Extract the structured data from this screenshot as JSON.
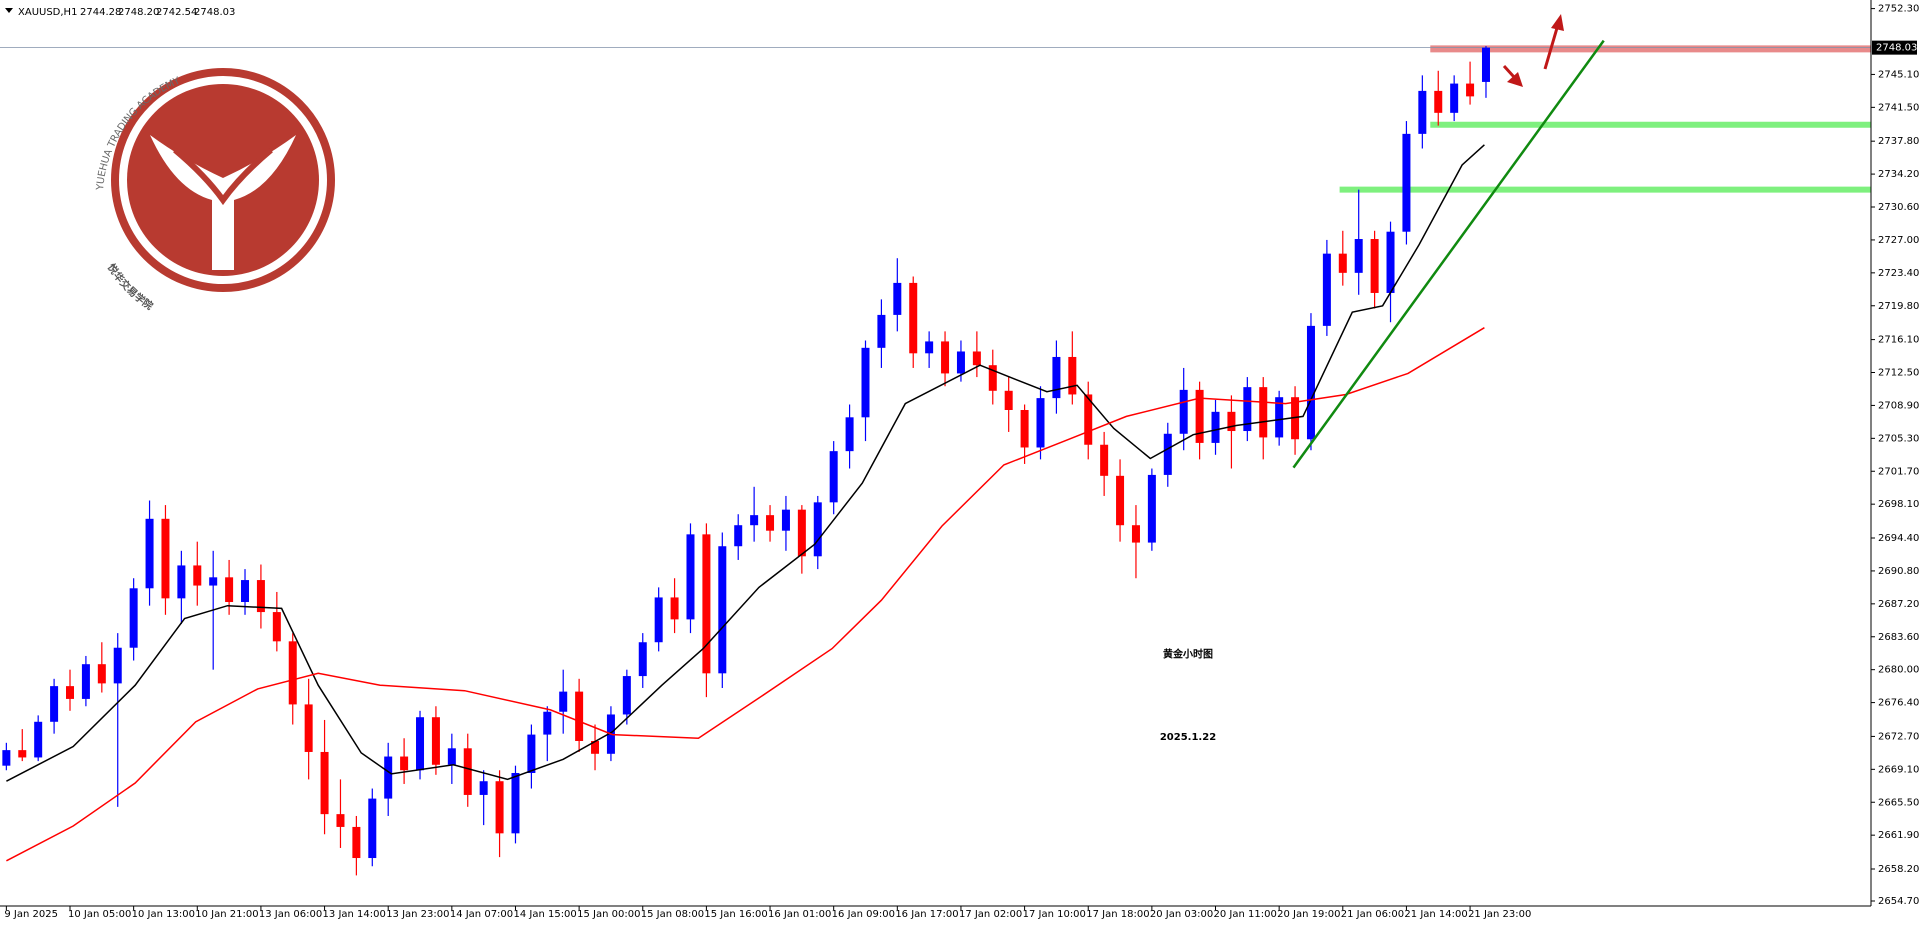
{
  "chart_data": {
    "type": "candlestick",
    "symbol": "XAUUSD,H1",
    "ohlc_labels": [
      "2744.28",
      "2748.20",
      "2742.54",
      "2748.03"
    ],
    "watermark": {
      "arc_text": "YUEHUA TRADING ACADEMY",
      "name_cn": "悦华交易学院"
    },
    "annotation": {
      "title": "黄金小时图",
      "date": "2025.1.22",
      "color": "#a020f0"
    },
    "up_color": "#0000ff",
    "down_color": "#ff0000",
    "xlim": [
      -0.4,
      117.2
    ],
    "ylim": [
      2654.7,
      2752.3
    ],
    "yticks": [
      {
        "value": 2654.7,
        "label": "2654.70"
      },
      {
        "value": 2658.2,
        "label": "2658.20"
      },
      {
        "value": 2661.9,
        "label": "2661.90"
      },
      {
        "value": 2665.5,
        "label": "2665.50"
      },
      {
        "value": 2669.1,
        "label": "2669.10"
      },
      {
        "value": 2672.7,
        "label": "2672.70"
      },
      {
        "value": 2676.4,
        "label": "2676.40"
      },
      {
        "value": 2680.0,
        "label": "2680.00"
      },
      {
        "value": 2683.6,
        "label": "2683.60"
      },
      {
        "value": 2687.2,
        "label": "2687.20"
      },
      {
        "value": 2690.8,
        "label": "2690.80"
      },
      {
        "value": 2694.4,
        "label": "2694.40"
      },
      {
        "value": 2698.1,
        "label": "2698.10"
      },
      {
        "value": 2701.7,
        "label": "2701.70"
      },
      {
        "value": 2705.3,
        "label": "2705.30"
      },
      {
        "value": 2708.9,
        "label": "2708.90"
      },
      {
        "value": 2712.5,
        "label": "2712.50"
      },
      {
        "value": 2716.1,
        "label": "2716.10"
      },
      {
        "value": 2719.8,
        "label": "2719.80"
      },
      {
        "value": 2723.4,
        "label": "2723.40"
      },
      {
        "value": 2727.0,
        "label": "2727.00"
      },
      {
        "value": 2730.6,
        "label": "2730.60"
      },
      {
        "value": 2734.2,
        "label": "2734.20"
      },
      {
        "value": 2737.8,
        "label": "2737.80"
      },
      {
        "value": 2741.5,
        "label": "2741.50"
      },
      {
        "value": 2745.1,
        "label": "2745.10"
      },
      {
        "value": 2752.3,
        "label": "2752.30"
      }
    ],
    "categories": [
      "9 Jan 2025",
      null,
      null,
      null,
      "10 Jan 05:00",
      null,
      null,
      null,
      "10 Jan 13:00",
      null,
      null,
      null,
      "10 Jan 21:00",
      null,
      null,
      null,
      "13 Jan 06:00",
      null,
      null,
      null,
      "13 Jan 14:00",
      null,
      null,
      null,
      "13 Jan 23:00",
      null,
      null,
      null,
      "14 Jan 07:00",
      null,
      null,
      null,
      "14 Jan 15:00",
      null,
      null,
      null,
      "15 Jan 00:00",
      null,
      null,
      null,
      "15 Jan 08:00",
      null,
      null,
      null,
      "15 Jan 16:00",
      null,
      null,
      null,
      "16 Jan 01:00",
      null,
      null,
      null,
      "16 Jan 09:00",
      null,
      null,
      null,
      "16 Jan 17:00",
      null,
      null,
      null,
      "17 Jan 02:00",
      null,
      null,
      null,
      "17 Jan 10:00",
      null,
      null,
      null,
      "17 Jan 18:00",
      null,
      null,
      null,
      "20 Jan 03:00",
      null,
      null,
      null,
      "20 Jan 11:00",
      null,
      null,
      null,
      "20 Jan 19:00",
      null,
      null,
      null,
      "21 Jan 06:00",
      null,
      null,
      null,
      "21 Jan 14:00",
      null,
      null,
      null,
      "21 Jan 23:00",
      null
    ],
    "candles": [
      [
        2669.5,
        2672,
        2669,
        2671.2
      ],
      [
        2671.2,
        2673.5,
        2670,
        2670.4
      ],
      [
        2670.4,
        2675,
        2670,
        2674.3
      ],
      [
        2674.3,
        2679,
        2673,
        2678.2
      ],
      [
        2678.2,
        2680,
        2675.5,
        2676.8
      ],
      [
        2676.8,
        2681.5,
        2676,
        2680.6
      ],
      [
        2680.6,
        2683,
        2677.5,
        2678.5
      ],
      [
        2678.5,
        2684,
        2665,
        2682.4
      ],
      [
        2682.4,
        2690,
        2681,
        2688.9
      ],
      [
        2688.9,
        2698.5,
        2687,
        2696.5
      ],
      [
        2696.5,
        2698,
        2686,
        2687.8
      ],
      [
        2687.8,
        2693,
        2685,
        2691.4
      ],
      [
        2691.4,
        2694,
        2687,
        2689.2
      ],
      [
        2689.2,
        2693,
        2680,
        2690.1
      ],
      [
        2690.1,
        2692,
        2686,
        2687.4
      ],
      [
        2687.4,
        2691,
        2686,
        2689.8
      ],
      [
        2689.8,
        2691.5,
        2684.5,
        2686.3
      ],
      [
        2686.3,
        2688.5,
        2682,
        2683.1
      ],
      [
        2683.1,
        2684,
        2674,
        2676.2
      ],
      [
        2676.2,
        2679,
        2668,
        2671
      ],
      [
        2671,
        2674.5,
        2662,
        2664.2
      ],
      [
        2664.2,
        2668,
        2660.5,
        2662.8
      ],
      [
        2662.8,
        2664,
        2657.5,
        2659.4
      ],
      [
        2659.4,
        2667,
        2658.5,
        2665.9
      ],
      [
        2665.9,
        2672,
        2664,
        2670.5
      ],
      [
        2670.5,
        2672.5,
        2667.5,
        2669
      ],
      [
        2669,
        2675.5,
        2668,
        2674.8
      ],
      [
        2674.8,
        2676,
        2668.5,
        2669.6
      ],
      [
        2669.6,
        2673,
        2667.5,
        2671.4
      ],
      [
        2671.4,
        2673,
        2665,
        2666.3
      ],
      [
        2666.3,
        2669,
        2663,
        2667.8
      ],
      [
        2667.8,
        2669,
        2659.5,
        2662.1
      ],
      [
        2662.1,
        2669.5,
        2661,
        2668.7
      ],
      [
        2668.7,
        2674,
        2667,
        2672.9
      ],
      [
        2672.9,
        2676,
        2670,
        2675.4
      ],
      [
        2675.4,
        2680,
        2673,
        2677.6
      ],
      [
        2677.6,
        2679,
        2671,
        2672.2
      ],
      [
        2672.2,
        2674,
        2669,
        2670.8
      ],
      [
        2670.8,
        2676,
        2670,
        2675.1
      ],
      [
        2675.1,
        2680,
        2674,
        2679.3
      ],
      [
        2679.3,
        2684,
        2678,
        2683
      ],
      [
        2683,
        2689,
        2682,
        2687.9
      ],
      [
        2687.9,
        2690,
        2684,
        2685.5
      ],
      [
        2685.5,
        2696,
        2684,
        2694.8
      ],
      [
        2694.8,
        2696,
        2677,
        2679.6
      ],
      [
        2679.6,
        2695,
        2678,
        2693.5
      ],
      [
        2693.5,
        2697,
        2692,
        2695.8
      ],
      [
        2695.8,
        2700,
        2694,
        2696.9
      ],
      [
        2696.9,
        2698,
        2694,
        2695.2
      ],
      [
        2695.2,
        2699,
        2693,
        2697.5
      ],
      [
        2697.5,
        2698,
        2690.5,
        2692.4
      ],
      [
        2692.4,
        2699,
        2691,
        2698.3
      ],
      [
        2698.3,
        2705,
        2697,
        2703.9
      ],
      [
        2703.9,
        2709,
        2702,
        2707.6
      ],
      [
        2707.6,
        2716,
        2705,
        2715.2
      ],
      [
        2715.2,
        2720.5,
        2713,
        2718.8
      ],
      [
        2718.8,
        2725,
        2717,
        2722.3
      ],
      [
        2722.3,
        2723,
        2713,
        2714.6
      ],
      [
        2714.6,
        2717,
        2713,
        2715.9
      ],
      [
        2715.9,
        2717,
        2711,
        2712.4
      ],
      [
        2712.4,
        2716,
        2711.5,
        2714.8
      ],
      [
        2714.8,
        2717,
        2712,
        2713.3
      ],
      [
        2713.3,
        2715,
        2709,
        2710.5
      ],
      [
        2710.5,
        2712,
        2706,
        2708.4
      ],
      [
        2708.4,
        2709,
        2702.5,
        2704.3
      ],
      [
        2704.3,
        2711,
        2703,
        2709.7
      ],
      [
        2709.7,
        2716,
        2708,
        2714.2
      ],
      [
        2714.2,
        2717,
        2709,
        2710.1
      ],
      [
        2710.1,
        2711.5,
        2703,
        2704.6
      ],
      [
        2704.6,
        2706,
        2699,
        2701.2
      ],
      [
        2701.2,
        2703,
        2694,
        2695.8
      ],
      [
        2695.8,
        2698,
        2690,
        2693.9
      ],
      [
        2693.9,
        2702,
        2693,
        2701.3
      ],
      [
        2701.3,
        2707,
        2700,
        2705.8
      ],
      [
        2705.8,
        2713,
        2704,
        2710.6
      ],
      [
        2710.6,
        2711.5,
        2703,
        2704.8
      ],
      [
        2704.8,
        2709.5,
        2703.5,
        2708.2
      ],
      [
        2708.2,
        2710,
        2702,
        2706.1
      ],
      [
        2706.1,
        2712,
        2705,
        2710.9
      ],
      [
        2710.9,
        2712,
        2703,
        2705.4
      ],
      [
        2705.4,
        2710.5,
        2704.5,
        2709.8
      ],
      [
        2709.8,
        2711,
        2703.5,
        2705.2
      ],
      [
        2705.2,
        2719,
        2704,
        2717.6
      ],
      [
        2717.6,
        2727,
        2716.5,
        2725.5
      ],
      [
        2725.5,
        2728,
        2722,
        2723.4
      ],
      [
        2723.4,
        2732.5,
        2721,
        2727.1
      ],
      [
        2727.1,
        2728,
        2719.5,
        2721.2
      ],
      [
        2721.2,
        2729,
        2718,
        2727.9
      ],
      [
        2727.9,
        2740,
        2726.5,
        2738.6
      ],
      [
        2738.6,
        2745,
        2737,
        2743.3
      ],
      [
        2743.3,
        2745.5,
        2739.5,
        2740.9
      ],
      [
        2740.9,
        2745,
        2740,
        2744.1
      ],
      [
        2744.1,
        2746.5,
        2741.8,
        2742.7
      ],
      [
        2744.28,
        2748.2,
        2742.54,
        2748.03
      ]
    ],
    "lines": [
      {
        "color": "#000000",
        "x": [
          0,
          4.2,
          8.1,
          11.2,
          13.9,
          17.3,
          19.6,
          22.3,
          24.2,
          28.1,
          31.5,
          35,
          38.1,
          41.2,
          43.8,
          47.3,
          50.8,
          53.8,
          56.5,
          61.2,
          63.5,
          65.4,
          67.3,
          69.6,
          71.9,
          74.6,
          77.3,
          81.5,
          84.6,
          86.5,
          88.8,
          91.5,
          92.9
        ],
        "values": [
          2667.8,
          2671.6,
          2678.3,
          2685.6,
          2687,
          2686.7,
          2678.3,
          2670.9,
          2668.6,
          2669.6,
          2668,
          2670.2,
          2673.2,
          2678.3,
          2682.3,
          2689,
          2693.7,
          2700.4,
          2709.1,
          2713.3,
          2711.7,
          2710.4,
          2711.1,
          2706.4,
          2703.1,
          2705.7,
          2706.7,
          2707.7,
          2719.1,
          2719.8,
          2726.5,
          2735.2,
          2737.4
        ]
      },
      {
        "color": "#ff0000",
        "x": [
          0,
          4.2,
          8.1,
          11.9,
          15.8,
          19.6,
          23.5,
          28.8,
          34.2,
          38.1,
          43.5,
          47.3,
          51.9,
          55,
          58.8,
          62.7,
          66.5,
          70.4,
          75,
          80.4,
          84.2,
          88.1,
          92.9
        ],
        "values": [
          2659.1,
          2662.9,
          2667.6,
          2674.3,
          2677.9,
          2679.6,
          2678.3,
          2677.7,
          2675.6,
          2672.9,
          2672.5,
          2676.9,
          2682.3,
          2687.6,
          2695.7,
          2702.4,
          2705,
          2707.7,
          2709.7,
          2709.1,
          2710.1,
          2712.4,
          2717.4
        ]
      }
    ],
    "resistance_zone": {
      "value": 2747.9,
      "color": "#e88a8a",
      "x": [
        89.5,
        117.2
      ]
    },
    "support_lines": [
      {
        "value": 2739.6,
        "color": "#7ef07e",
        "x": [
          89.5,
          117.2
        ]
      },
      {
        "value": 2732.5,
        "color": "#7ef07e",
        "x": [
          83.8,
          117.2
        ]
      }
    ],
    "trendline": {
      "color": "#108a10",
      "x": [
        80.9,
        100.4
      ],
      "values": [
        2702.1,
        2748.8
      ]
    }
  }
}
